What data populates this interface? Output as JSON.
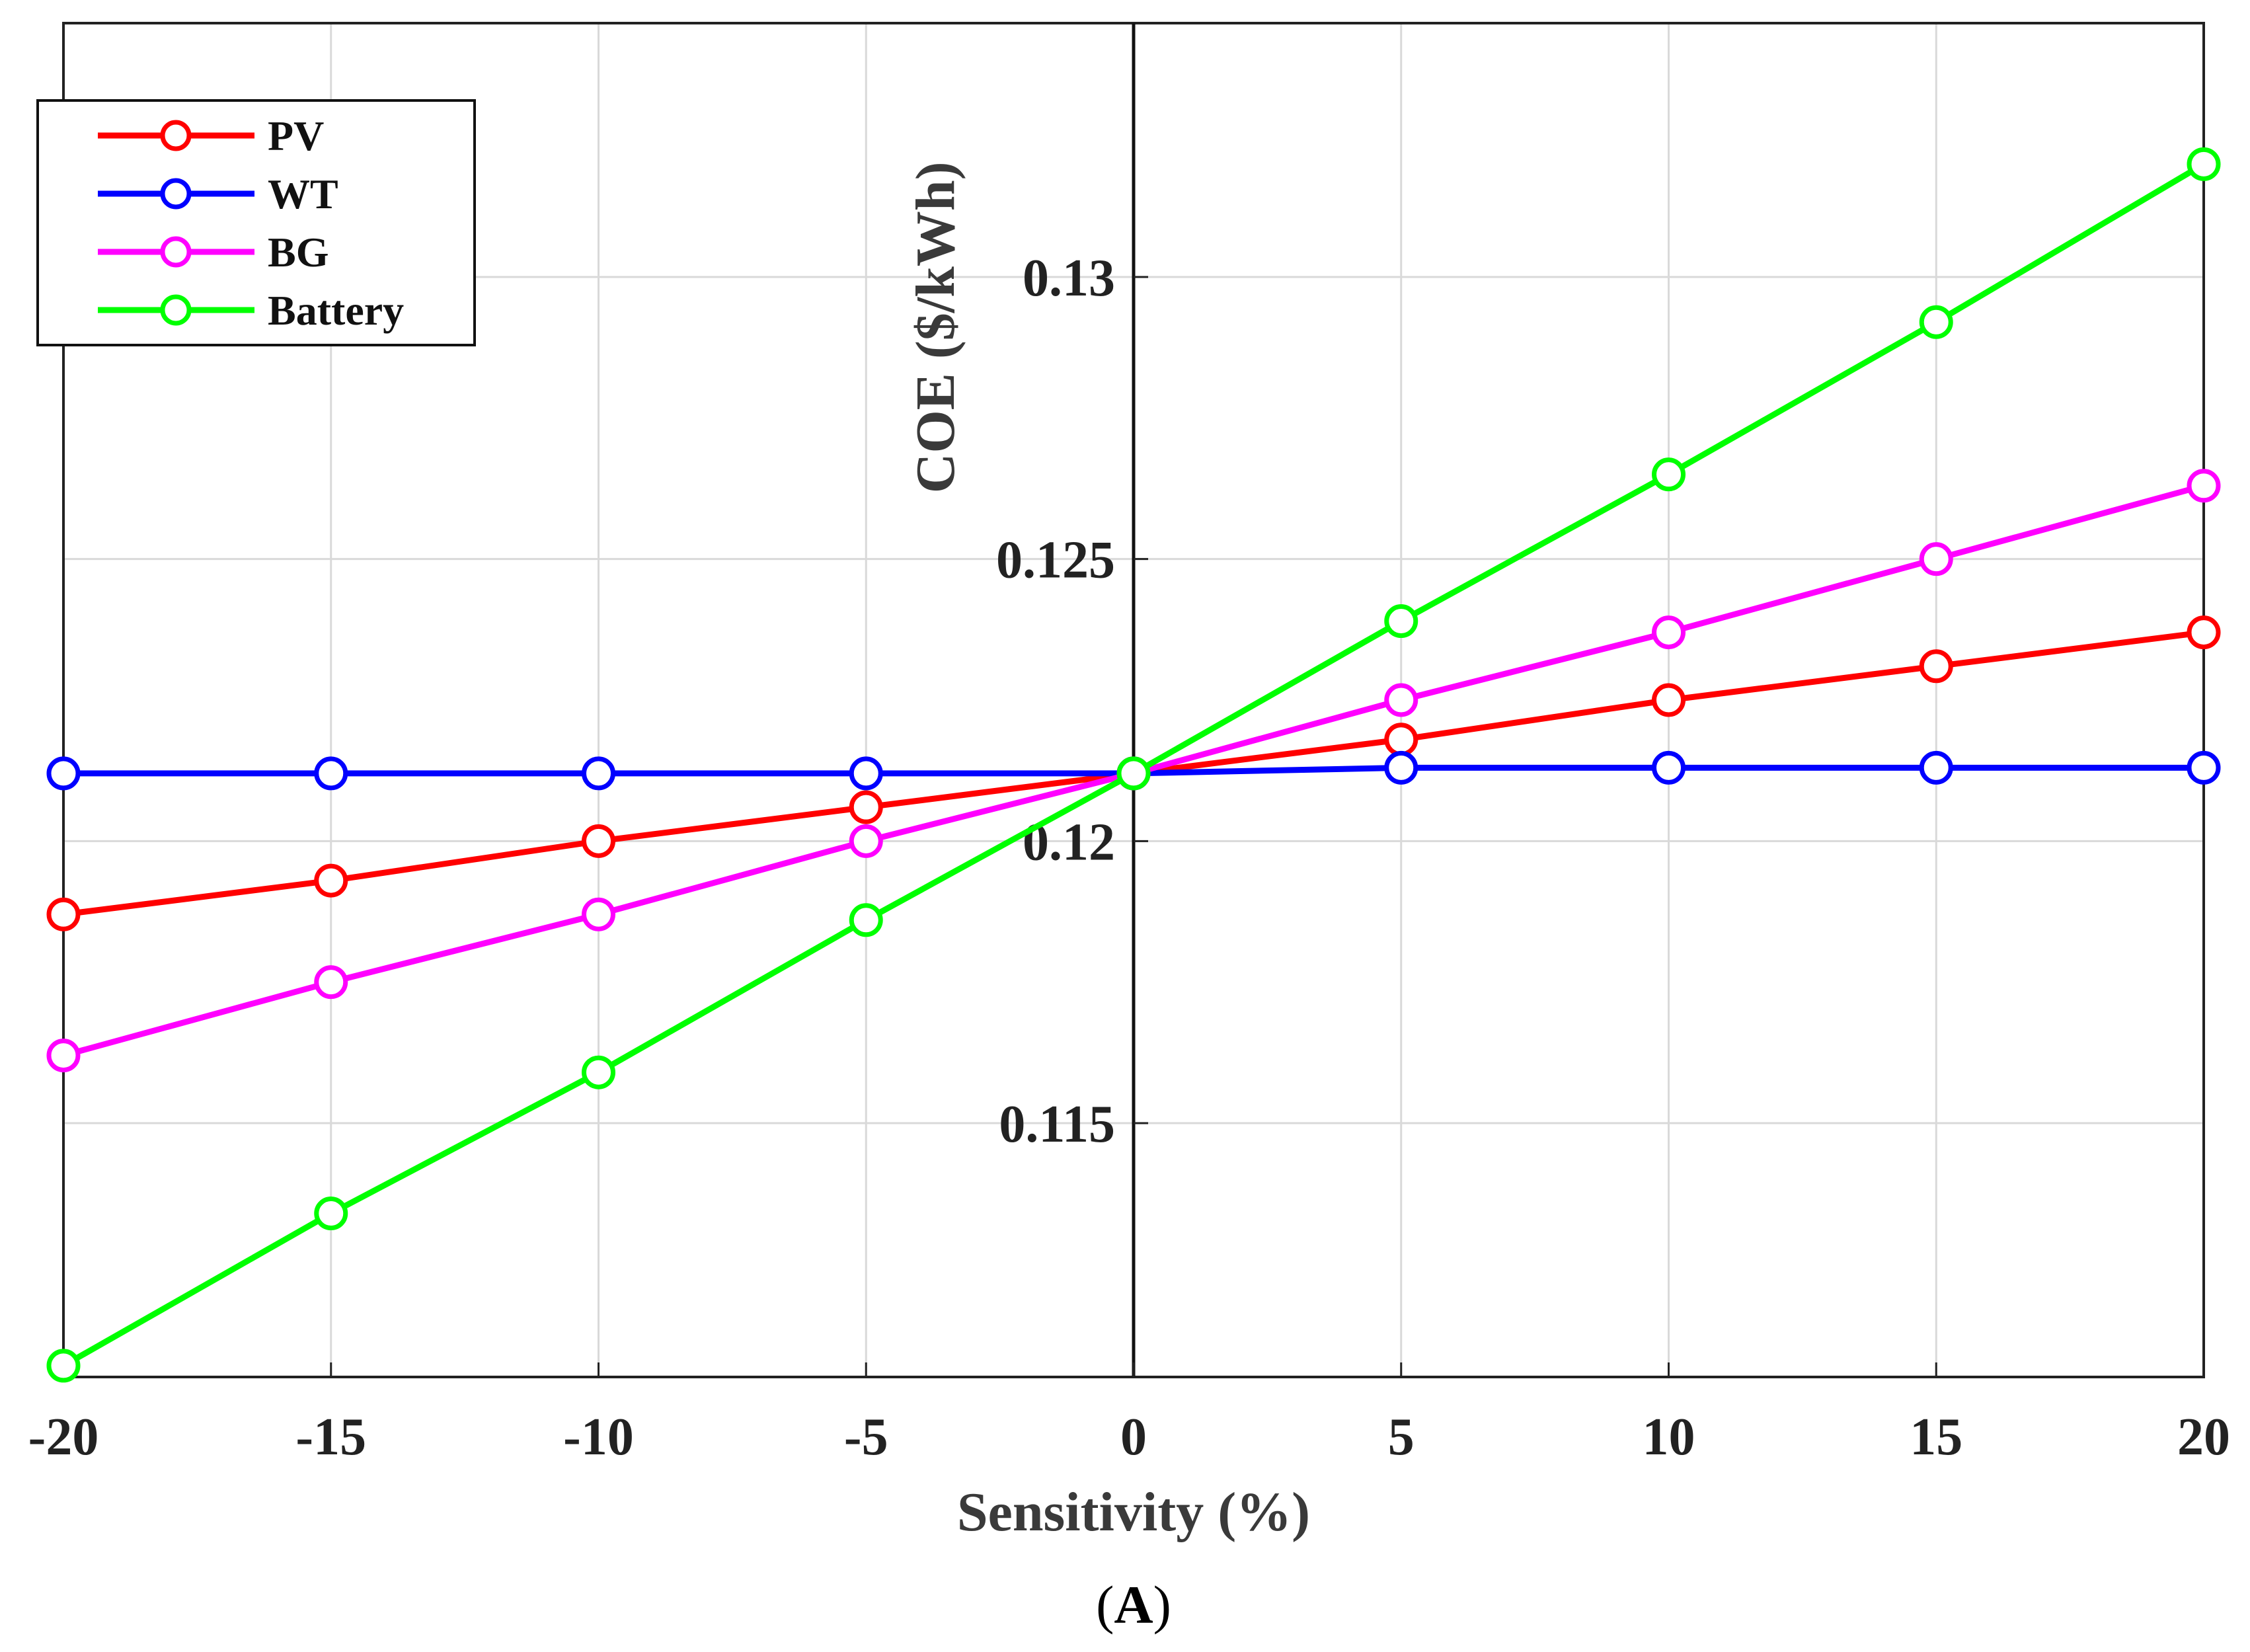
{
  "chart_data": {
    "type": "line",
    "title": "",
    "xlabel": "Sensitivity (%)",
    "ylabel": "COE ($/kWh)",
    "caption_letter": "A",
    "x": [
      -20,
      -15,
      -10,
      -5,
      0,
      5,
      10,
      15,
      20
    ],
    "xlim": [
      -20,
      20
    ],
    "ylim": [
      0.1105,
      0.1345
    ],
    "xticks": [
      -20,
      -15,
      -10,
      -5,
      0,
      5,
      10,
      15,
      20
    ],
    "xtick_labels": [
      "-20",
      "-15",
      "-10",
      "-5",
      "0",
      "5",
      "10",
      "15",
      "20"
    ],
    "yticks": [
      0.115,
      0.12,
      0.125,
      0.13
    ],
    "ytick_labels": [
      "0.115",
      "0.12",
      "0.125",
      "0.13"
    ],
    "grid": true,
    "legend_position": "top-left",
    "series": [
      {
        "name": "PV",
        "color": "#ff0000",
        "values": [
          0.1187,
          0.1193,
          0.12,
          0.1206,
          0.1212,
          0.1218,
          0.1225,
          0.1231,
          0.1237
        ]
      },
      {
        "name": "WT",
        "color": "#0000ff",
        "values": [
          0.1212,
          0.1212,
          0.1212,
          0.1212,
          0.1212,
          0.1213,
          0.1213,
          0.1213,
          0.1213
        ]
      },
      {
        "name": "BG",
        "color": "#ff00ff",
        "values": [
          0.1162,
          0.1175,
          0.1187,
          0.12,
          0.1212,
          0.1225,
          0.1237,
          0.125,
          0.1263
        ]
      },
      {
        "name": "Battery",
        "color": "#00ff00",
        "values": [
          0.1107,
          0.1134,
          0.1159,
          0.1186,
          0.1212,
          0.1239,
          0.1265,
          0.1292,
          0.132
        ]
      }
    ]
  }
}
